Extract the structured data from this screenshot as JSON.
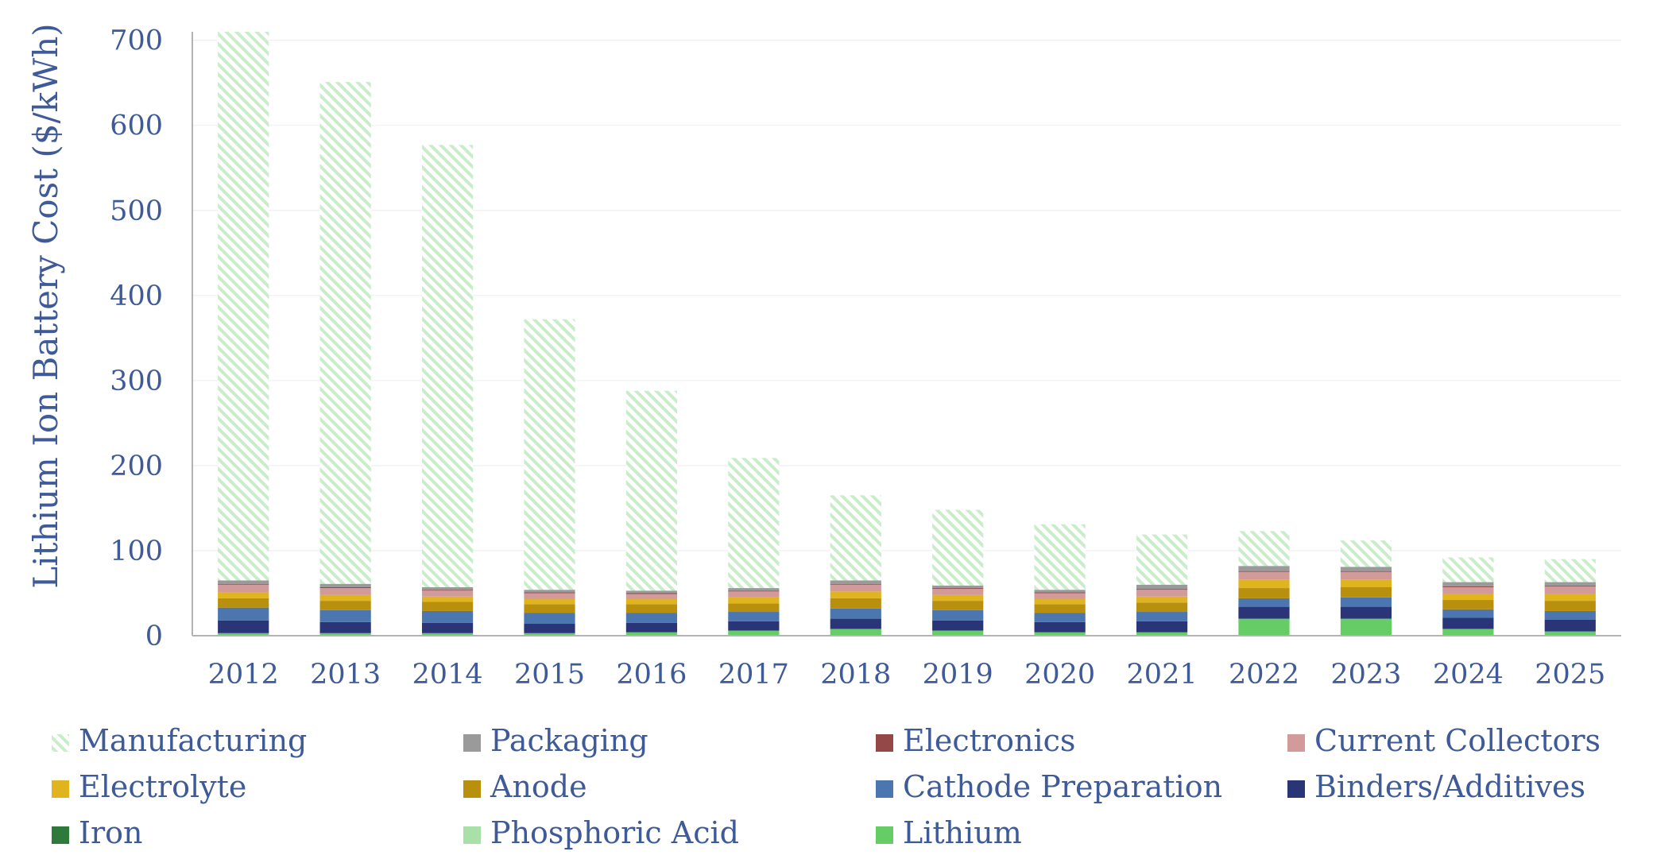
{
  "chart_data": {
    "type": "bar",
    "stacked": true,
    "title": "",
    "xlabel": "",
    "ylabel": "Lithium Ion Battery Cost ($/kWh)",
    "ylim": [
      0,
      710
    ],
    "yticks": [
      0,
      100,
      200,
      300,
      400,
      500,
      600,
      700
    ],
    "grid": true,
    "legend_position": "bottom",
    "categories": [
      "2012",
      "2013",
      "2014",
      "2015",
      "2016",
      "2017",
      "2018",
      "2019",
      "2020",
      "2021",
      "2022",
      "2023",
      "2024",
      "2025"
    ],
    "series": [
      {
        "name": "Lithium",
        "color": "#66cc66",
        "pattern": "solid",
        "values": [
          3,
          3,
          3,
          3,
          4,
          6,
          8,
          6,
          4,
          4,
          20,
          20,
          8,
          5
        ]
      },
      {
        "name": "Phosphoric Acid",
        "color": "#a8e0a8",
        "pattern": "solid",
        "values": [
          0,
          0,
          0,
          0,
          0,
          0,
          0,
          0,
          0,
          0,
          0,
          0,
          0,
          0
        ]
      },
      {
        "name": "Iron",
        "color": "#2e7a3a",
        "pattern": "solid",
        "values": [
          0,
          0,
          0,
          0,
          0,
          0,
          0,
          0,
          0,
          0,
          0,
          0,
          0,
          0
        ]
      },
      {
        "name": "Binders/Additives",
        "color": "#2a3578",
        "pattern": "solid",
        "values": [
          15,
          13,
          12,
          11,
          11,
          11,
          12,
          12,
          12,
          13,
          14,
          14,
          13,
          14
        ]
      },
      {
        "name": "Cathode Preparation",
        "color": "#4b76b0",
        "pattern": "solid",
        "values": [
          15,
          14,
          14,
          13,
          12,
          11,
          12,
          12,
          11,
          11,
          10,
          11,
          10,
          10
        ]
      },
      {
        "name": "Anode",
        "color": "#b8900e",
        "pattern": "solid",
        "values": [
          11,
          11,
          11,
          10,
          10,
          10,
          12,
          11,
          10,
          11,
          12,
          12,
          11,
          12
        ]
      },
      {
        "name": "Electrolyte",
        "color": "#e0b41e",
        "pattern": "solid",
        "values": [
          7,
          7,
          6,
          6,
          6,
          7,
          8,
          7,
          6,
          7,
          10,
          9,
          7,
          8
        ]
      },
      {
        "name": "Current Collectors",
        "color": "#d39a9a",
        "pattern": "solid",
        "values": [
          9,
          8,
          7,
          7,
          6,
          7,
          8,
          7,
          7,
          8,
          9,
          9,
          8,
          9
        ]
      },
      {
        "name": "Electronics",
        "color": "#944848",
        "pattern": "solid",
        "values": [
          1,
          1,
          1,
          1,
          1,
          1,
          1,
          1,
          1,
          1,
          1,
          1,
          1,
          1
        ]
      },
      {
        "name": "Packaging",
        "color": "#9a9a9a",
        "pattern": "solid",
        "values": [
          4,
          4,
          3,
          3,
          3,
          3,
          4,
          3,
          3,
          5,
          6,
          5,
          5,
          4
        ]
      },
      {
        "name": "Manufacturing",
        "color": "#c9ecc9",
        "pattern": "hatch",
        "values": [
          645,
          590,
          520,
          318,
          235,
          153,
          100,
          89,
          77,
          59,
          41,
          31,
          29,
          27
        ]
      }
    ],
    "legend_order": [
      "Manufacturing",
      "Packaging",
      "Electronics",
      "Current Collectors",
      "Electrolyte",
      "Anode",
      "Cathode Preparation",
      "Binders/Additives",
      "Iron",
      "Phosphoric Acid",
      "Lithium"
    ]
  }
}
